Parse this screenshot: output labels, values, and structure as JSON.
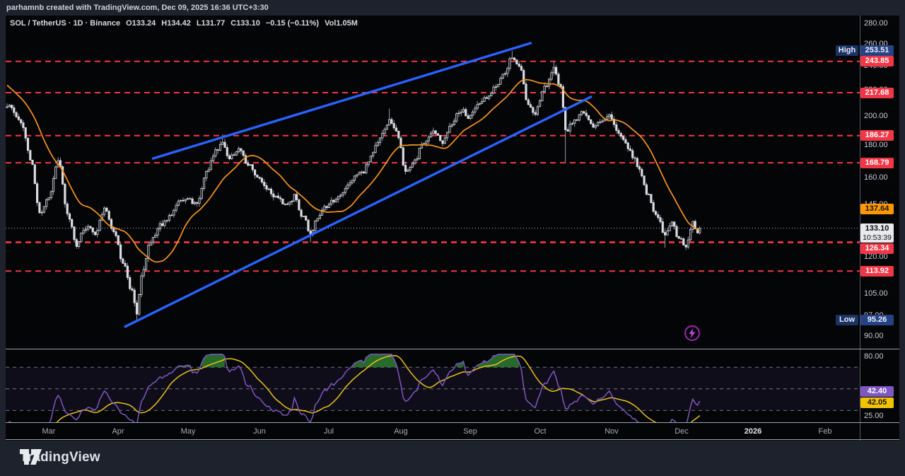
{
  "attribution": {
    "text": "parhamnb created with TradingView.com, Dec 09, 2025 16:36 UTC+3:30"
  },
  "legend": {
    "title": "SOL / TetherUS · 1D · Binance",
    "open": "O133.24",
    "high": "H134.42",
    "low": "L131.77",
    "close": "C133.10",
    "change": "−0.15 (−0.11%)",
    "volume": "Vol1.05M"
  },
  "footer": {
    "brand": "TradingView"
  },
  "icons": {
    "quick_trade_button": "lightning-bolt-icon",
    "brand_mark": "tradingview-logo-icon"
  },
  "colors": {
    "accent_blue": "#2962ff",
    "level_red": "#f23645",
    "ma_orange": "#f7941d",
    "rsi_purple": "#7e57c2",
    "rsi_ma_yellow": "#e8c21a",
    "candle_white": "#d9dce3",
    "badge_orange": "#ff9800",
    "badge_navy": "#254384",
    "overbought_green": "#2e7d32"
  },
  "chart_data": {
    "type": "candlestick",
    "title": "SOL / TetherUS · 1D · Binance",
    "scale": "log",
    "grid": false,
    "pane_main": {
      "ylim": [
        90,
        280
      ],
      "axis_ticks": [
        "280.00",
        "260.00",
        "240.00",
        "220.00",
        "200.00",
        "180.00",
        "160.00",
        "145.00",
        "120.00",
        "105.00",
        "97.00",
        "90.00"
      ],
      "axis_tick_values": [
        280,
        260,
        240,
        220,
        200,
        180,
        160,
        145,
        120,
        105,
        97,
        90
      ],
      "levels_red_dashed": [
        243.85,
        217.68,
        186.27,
        168.79,
        126.58,
        126.34,
        113.92
      ],
      "high_badge": {
        "label": "High",
        "value": "253.51",
        "price": 253.51
      },
      "low_badge": {
        "label": "Low",
        "value": "95.26",
        "price": 95.26
      },
      "ma_badge": {
        "value": "137.64",
        "price": 137.64,
        "period": 20
      },
      "last_price_badge": {
        "value": "133.10",
        "price": 133.1,
        "countdown": "10:53:39"
      },
      "close_anchors": [
        [
          0,
          208
        ],
        [
          6,
          196
        ],
        [
          10,
          172
        ],
        [
          14,
          141
        ],
        [
          18,
          148
        ],
        [
          22,
          170
        ],
        [
          26,
          140
        ],
        [
          30,
          126
        ],
        [
          34,
          134
        ],
        [
          38,
          130
        ],
        [
          42,
          143
        ],
        [
          46,
          131
        ],
        [
          50,
          118
        ],
        [
          54,
          106
        ],
        [
          56,
          97
        ],
        [
          58,
          112
        ],
        [
          62,
          127
        ],
        [
          66,
          134
        ],
        [
          70,
          139
        ],
        [
          74,
          147
        ],
        [
          78,
          148
        ],
        [
          82,
          146
        ],
        [
          86,
          163
        ],
        [
          90,
          176
        ],
        [
          93,
          181
        ],
        [
          96,
          172
        ],
        [
          100,
          177
        ],
        [
          104,
          168
        ],
        [
          108,
          160
        ],
        [
          112,
          154
        ],
        [
          116,
          150
        ],
        [
          120,
          145
        ],
        [
          124,
          149
        ],
        [
          128,
          138
        ],
        [
          131,
          130
        ],
        [
          134,
          138
        ],
        [
          138,
          145
        ],
        [
          142,
          148
        ],
        [
          146,
          153
        ],
        [
          150,
          160
        ],
        [
          154,
          164
        ],
        [
          158,
          176
        ],
        [
          162,
          188
        ],
        [
          165,
          197
        ],
        [
          168,
          190
        ],
        [
          172,
          163
        ],
        [
          176,
          170
        ],
        [
          180,
          182
        ],
        [
          184,
          190
        ],
        [
          188,
          182
        ],
        [
          192,
          196
        ],
        [
          196,
          205
        ],
        [
          199,
          198
        ],
        [
          203,
          208
        ],
        [
          207,
          214
        ],
        [
          211,
          222
        ],
        [
          215,
          236
        ],
        [
          218,
          248
        ],
        [
          221,
          240
        ],
        [
          225,
          208
        ],
        [
          228,
          202
        ],
        [
          232,
          222
        ],
        [
          236,
          236
        ],
        [
          239,
          222
        ],
        [
          241,
          190
        ],
        [
          245,
          196
        ],
        [
          249,
          204
        ],
        [
          253,
          192
        ],
        [
          257,
          196
        ],
        [
          260,
          200
        ],
        [
          264,
          188
        ],
        [
          268,
          178
        ],
        [
          272,
          168
        ],
        [
          276,
          152
        ],
        [
          280,
          140
        ],
        [
          284,
          130
        ],
        [
          287,
          136
        ],
        [
          290,
          128
        ],
        [
          293,
          125
        ],
        [
          296,
          136
        ],
        [
          298,
          130
        ],
        [
          299,
          133.1
        ]
      ],
      "forced_extremes": [
        {
          "day": 56,
          "low": 95.26
        },
        {
          "day": 93,
          "high": 187
        },
        {
          "day": 131,
          "low": 126.3
        },
        {
          "day": 165,
          "high": 205.5
        },
        {
          "day": 218,
          "high": 253.51
        },
        {
          "day": 236,
          "high": 243.85
        },
        {
          "day": 241,
          "low": 169
        },
        {
          "day": 284,
          "low": 124
        },
        {
          "day": 299,
          "close": 133.1
        }
      ],
      "trendlines": [
        {
          "from_day": 63,
          "from_price": 171.4,
          "to_day": 226,
          "to_price": 260.6
        },
        {
          "from_day": 51,
          "from_price": 93.1,
          "to_day": 252,
          "to_price": 214.4
        }
      ]
    },
    "pane_rsi": {
      "ylim": [
        25,
        80
      ],
      "axis_ticks": [
        "80.00",
        "25.00"
      ],
      "axis_tick_values": [
        80,
        25
      ],
      "guides": [
        70,
        50,
        30
      ],
      "period": 14,
      "rsi_badge": {
        "value": "42.40"
      },
      "rsi_ma_badge": {
        "value": "42.05"
      }
    },
    "x_axis": {
      "ticks": [
        {
          "label": "Mar",
          "day": 18
        },
        {
          "label": "Apr",
          "day": 48
        },
        {
          "label": "May",
          "day": 78
        },
        {
          "label": "Jun",
          "day": 109
        },
        {
          "label": "Jul",
          "day": 139
        },
        {
          "label": "Aug",
          "day": 170
        },
        {
          "label": "Sep",
          "day": 200
        },
        {
          "label": "Oct",
          "day": 230
        },
        {
          "label": "Nov",
          "day": 261
        },
        {
          "label": "Dec",
          "day": 291
        },
        {
          "label": "2026",
          "day": 322,
          "year": true
        },
        {
          "label": "Feb",
          "day": 353
        }
      ]
    }
  }
}
